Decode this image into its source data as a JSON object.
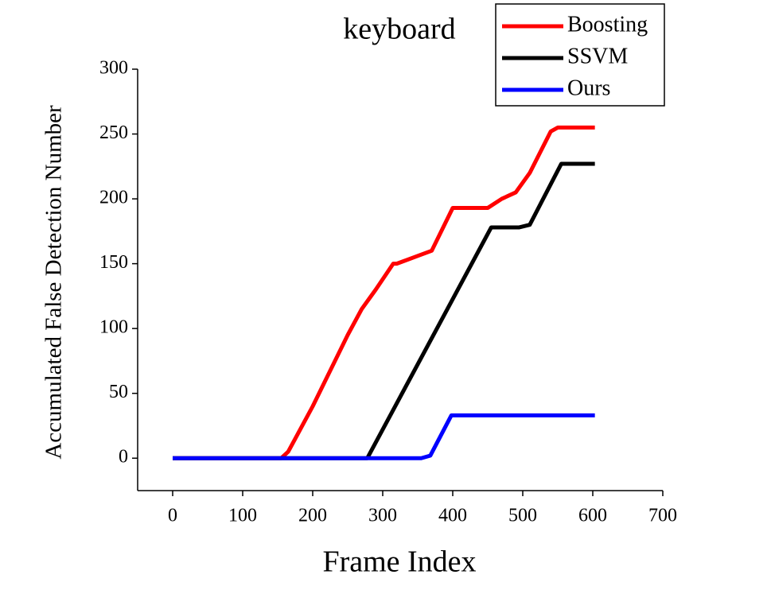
{
  "chart_data": {
    "type": "line",
    "title": "keyboard",
    "xlabel": "Frame Index",
    "ylabel": "Accumulated False Detection Number",
    "xlim": [
      -50,
      700
    ],
    "xticks": [
      0,
      100,
      200,
      300,
      400,
      500,
      600,
      700
    ],
    "ylim": [
      -25,
      300
    ],
    "yticks": [
      0,
      50,
      100,
      150,
      200,
      250,
      300
    ],
    "legend": "upper right",
    "grid": false,
    "series": [
      {
        "name": "Boosting",
        "color": "#ff0000",
        "x": [
          0,
          155,
          165,
          175,
          200,
          250,
          270,
          290,
          315,
          320,
          330,
          355,
          370,
          400,
          450,
          470,
          490,
          510,
          540,
          550,
          603
        ],
        "values": [
          0,
          0,
          5,
          15,
          40,
          95,
          115,
          130,
          150,
          150,
          152,
          157,
          160,
          193,
          193,
          200,
          205,
          220,
          252,
          255,
          255
        ]
      },
      {
        "name": "SSVM",
        "color": "#000000",
        "x": [
          0,
          278,
          455,
          495,
          510,
          555,
          603
        ],
        "values": [
          0,
          0,
          178,
          178,
          180,
          227,
          227
        ]
      },
      {
        "name": "Ours",
        "color": "#0000ff",
        "x": [
          0,
          355,
          368,
          398,
          603
        ],
        "values": [
          0,
          0,
          2,
          33,
          33
        ]
      }
    ]
  }
}
